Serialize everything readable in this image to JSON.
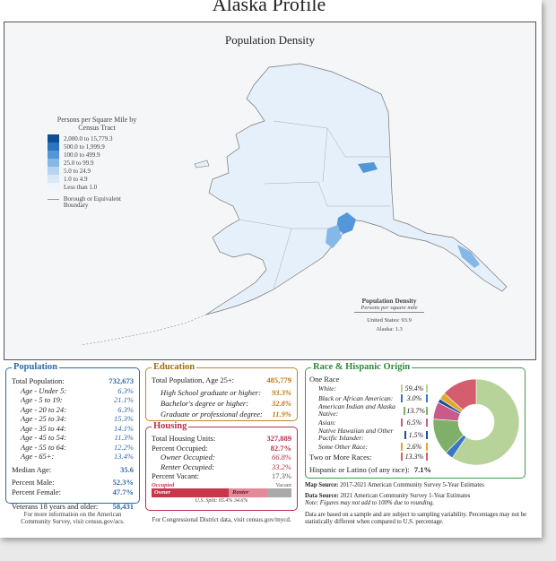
{
  "title": "Alaska Profile",
  "map": {
    "title": "Population Density",
    "legend_title": "Persons per Square Mile by Census Tract",
    "legend": [
      {
        "label": "2,000.0 to 15,779.3",
        "color": "#0d4f94"
      },
      {
        "label": "500.0 to 1,999.9",
        "color": "#2c74bf"
      },
      {
        "label": "100.0 to 499.9",
        "color": "#5497d8"
      },
      {
        "label": "25.0 to 99.9",
        "color": "#85b8e6"
      },
      {
        "label": "5.0 to 24.9",
        "color": "#b4d4f1"
      },
      {
        "label": "1.0 to 4.9",
        "color": "#d7e8f8"
      },
      {
        "label": "Less than 1.0",
        "color": "#eef5fc"
      }
    ],
    "boundary_label": "Borough or Equivalent Boundary",
    "density_box": {
      "title": "Population Density",
      "subtitle": "Persons per square mile",
      "us": "United States: 93.9",
      "ak": "Alaska: 1.3"
    }
  },
  "population": {
    "header": "Population",
    "total_label": "Total Population:",
    "total": "732,673",
    "ages": [
      {
        "label": "Age - Under 5:",
        "value": "6.3%"
      },
      {
        "label": "Age - 5 to 19:",
        "value": "21.1%"
      },
      {
        "label": "Age - 20 to 24:",
        "value": "6.3%"
      },
      {
        "label": "Age - 25 to 34:",
        "value": "15.3%"
      },
      {
        "label": "Age - 35 to 44:",
        "value": "14.1%"
      },
      {
        "label": "Age - 45 to 54:",
        "value": "11.3%"
      },
      {
        "label": "Age - 55 to 64:",
        "value": "12.2%"
      },
      {
        "label": "Age - 65+:",
        "value": "13.4%"
      }
    ],
    "median_label": "Median Age:",
    "median": "35.6",
    "male_label": "Percent Male:",
    "male": "52.3%",
    "female_label": "Percent Female:",
    "female": "47.7%",
    "vets_label": "Veterans 18 years and older:",
    "vets": "58,431"
  },
  "education": {
    "header": "Education",
    "total_label": "Total Population, Age 25+:",
    "total": "485,779",
    "rows": [
      {
        "label": "High School graduate or higher:",
        "value": "93.3%"
      },
      {
        "label": "Bachelor's degree or higher:",
        "value": "32.8%"
      },
      {
        "label": "Graduate or professional degree:",
        "value": "11.9%"
      }
    ]
  },
  "housing": {
    "header": "Housing",
    "units_label": "Total Housing Units:",
    "units": "327,889",
    "occupied_label": "Percent Occupied:",
    "occupied": "82.7%",
    "owner_label": "Owner Occupied:",
    "owner": "66.8%",
    "renter_label": "Renter Occupied:",
    "renter": "33.2%",
    "vacant_label": "Percent Vacant:",
    "vacant": "17.3%",
    "bar_occupied": "Occupied",
    "bar_vacant": "Vacant",
    "bar_owner": "Owner",
    "bar_renter": "Renter",
    "split_label": "U.S. Split: 65.4%",
    "split_renter": "34.6%",
    "occupied_fraction": 0.827,
    "owner_fraction": 0.668
  },
  "race": {
    "header": "Race & Hispanic Origin",
    "one_race": "One Race",
    "rows": [
      {
        "label": "White:",
        "value": "59.4%",
        "color": "#b7d39a",
        "frac": 0.594
      },
      {
        "label": "Black or African American:",
        "value": "3.0%",
        "color": "#3a78c2",
        "frac": 0.03
      },
      {
        "label": "American Indian and Alaska Native:",
        "value": "13.7%",
        "color": "#7fb069",
        "frac": 0.137
      },
      {
        "label": "Asian:",
        "value": "6.5%",
        "color": "#c95a8a",
        "frac": 0.065
      },
      {
        "label": "Native Hawaiian and Other Pacific Islander:",
        "value": "1.5%",
        "color": "#1f4e96",
        "frac": 0.015
      },
      {
        "label": "Some Other Race:",
        "value": "2.6%",
        "color": "#e0a82e",
        "frac": 0.026
      },
      {
        "label": "Two or More Races:",
        "value": "13.3%",
        "color": "#d45e6e",
        "frac": 0.133
      }
    ],
    "hispanic_label": "Hispanic or Latino (of any race):",
    "hispanic": "7.1%"
  },
  "sources": {
    "map_label": "Map Source:",
    "map": "2017-2021 American Community Survey 5-Year Estimates",
    "data_label": "Data Source:",
    "data": "2021 American Community Survey 1-Year Estimates",
    "note": "Note: Figures may not add to 100% due to rounding.",
    "disclaimer": "Data are based on a sample and are subject to sampling variability. Percentages may not be statistically different when compared to U.S. percentage."
  },
  "footer": {
    "left_1": "For more information on the American",
    "left_2": "Community Survey, visit census.gov/acs.",
    "mid": "For Congressional District data, visit census.gov/mycd."
  }
}
